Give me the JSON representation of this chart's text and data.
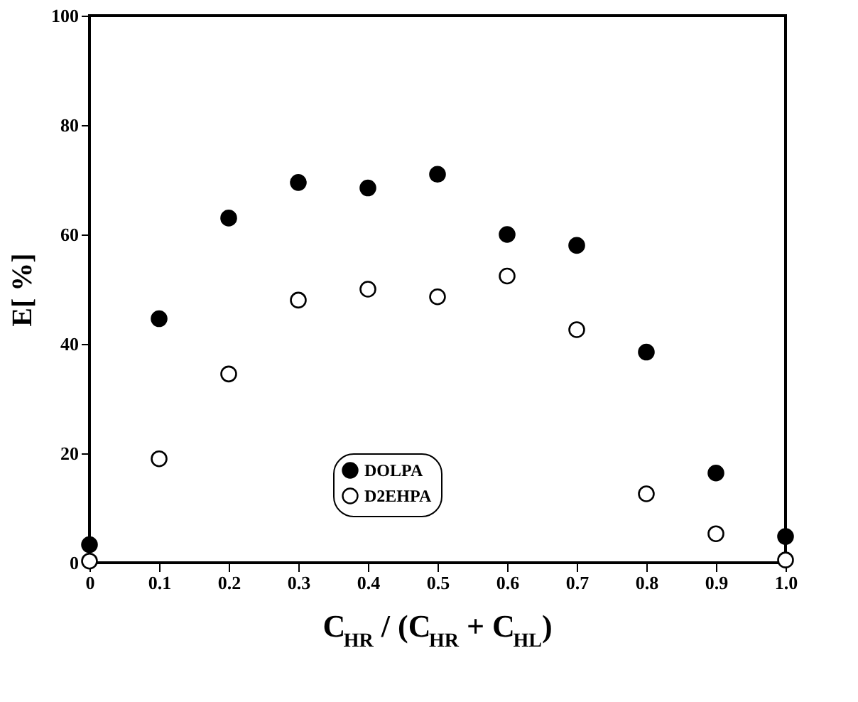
{
  "chart_data": {
    "type": "scatter",
    "xlabel": "C$_{HR}$ / (C$_{HR}$ + C$_{HL}$)",
    "ylabel": "E[ %]",
    "x": [
      0,
      0.1,
      0.2,
      0.3,
      0.4,
      0.5,
      0.6,
      0.7,
      0.8,
      0.9,
      1.0
    ],
    "series": [
      {
        "name": "DOLPA",
        "color": "#000000",
        "values": [
          3.3,
          44.6,
          63,
          69.5,
          68.5,
          71,
          60,
          58,
          38.5,
          16.4,
          4.8
        ]
      },
      {
        "name": "D2EHPA",
        "color": "#ffffff",
        "values": [
          0.3,
          19,
          34.5,
          48,
          50,
          48.6,
          52.4,
          42.6,
          12.6,
          5.3,
          0.5
        ]
      }
    ],
    "xlim": [
      0,
      1.0
    ],
    "xticks": [
      0,
      0.1,
      0.2,
      0.3,
      0.4,
      0.5,
      0.6,
      0.7,
      0.8,
      0.9,
      {
        "value": 1.0,
        "label": "1.0"
      }
    ],
    "ylim": [
      0,
      100
    ],
    "yticks": [
      0,
      20,
      40,
      60,
      80,
      100
    ],
    "marker": "circle",
    "legend": "bottom",
    "grid": false
  }
}
